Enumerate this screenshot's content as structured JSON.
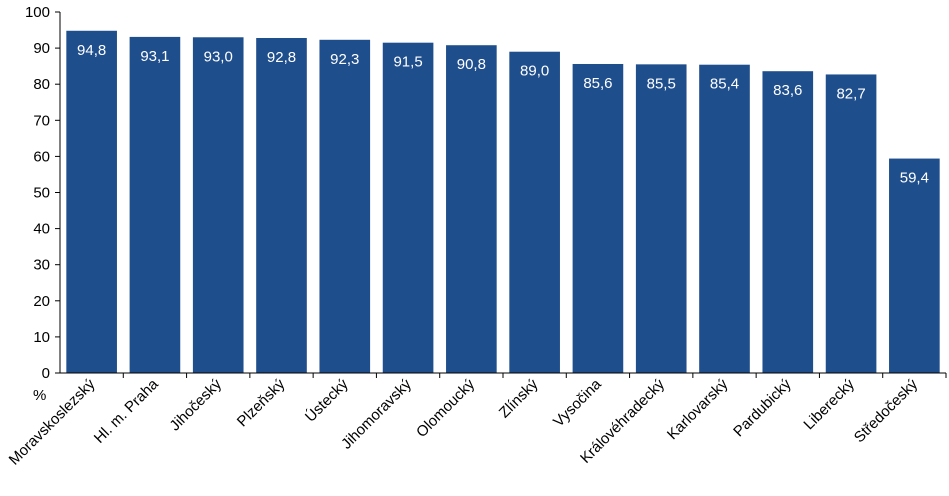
{
  "chart_data": {
    "type": "bar",
    "unit_label": "%",
    "categories": [
      "Moravskoslezský",
      "Hl. m. Praha",
      "Jihočeský",
      "Plzeňský",
      "Ústecký",
      "Jihomoravský",
      "Olomoucký",
      "Zlínský",
      "Vysočina",
      "Královéhradecký",
      "Karlovarský",
      "Pardubický",
      "Liberecký",
      "Středočeský"
    ],
    "values": [
      94.8,
      93.1,
      93.0,
      92.8,
      92.3,
      91.5,
      90.8,
      89.0,
      85.6,
      85.5,
      85.4,
      83.6,
      82.7,
      59.4
    ],
    "data_labels": [
      "94,8",
      "93,1",
      "93,0",
      "92,8",
      "92,3",
      "91,5",
      "90,8",
      "89,0",
      "85,6",
      "85,5",
      "85,4",
      "83,6",
      "82,7",
      "59,4"
    ],
    "ylim": [
      0,
      100
    ],
    "yticks": [
      "0",
      "10",
      "20",
      "30",
      "40",
      "50",
      "60",
      "70",
      "80",
      "90",
      "100"
    ],
    "grid": false,
    "bar_color": "#1f4e8c",
    "data_label_color": "#ffffff"
  }
}
